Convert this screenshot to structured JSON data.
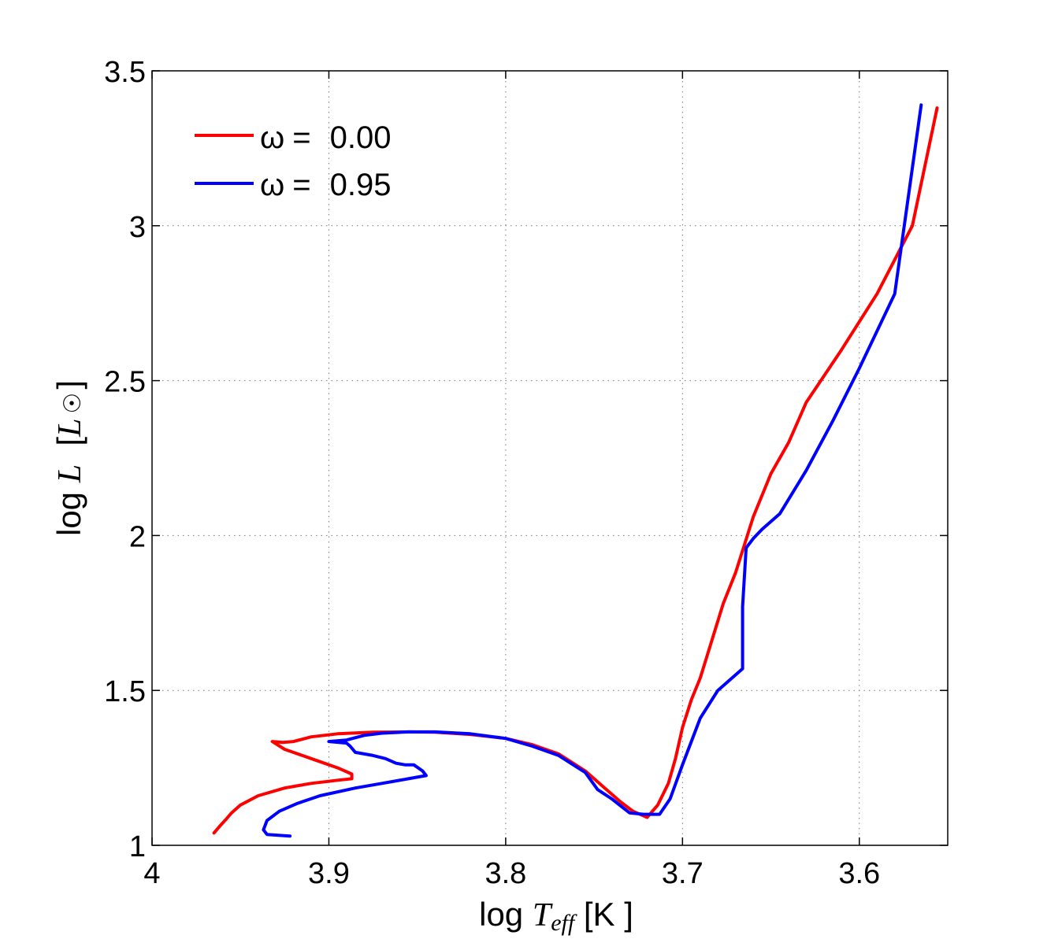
{
  "chart_data": {
    "type": "line",
    "title": "",
    "xlabel": {
      "prefix": "log ",
      "symbol": "T",
      "subscript": "eff",
      "unit": " [K ]"
    },
    "ylabel": {
      "prefix": "log ",
      "symbol": "L",
      "unit_open": "  [",
      "unit_symbol": "L",
      "unit_sun": "☉",
      "unit_close": "]"
    },
    "xlim": [
      4.0,
      3.55
    ],
    "x_reversed": true,
    "ylim": [
      1.0,
      3.5
    ],
    "xticks": [
      4.0,
      3.9,
      3.8,
      3.7,
      3.6
    ],
    "xtick_labels": [
      "4",
      "3.9",
      "3.8",
      "3.7",
      "3.6"
    ],
    "yticks": [
      1.0,
      1.5,
      2.0,
      2.5,
      3.0,
      3.5
    ],
    "ytick_labels": [
      "1",
      "1.5",
      "2",
      "2.5",
      "3",
      "3.5"
    ],
    "grid": true,
    "legend_position": "top-left",
    "series": [
      {
        "name": "ω = 0.00",
        "legend_symbol": "ω",
        "legend_value": "0.00",
        "color": "#ff0000",
        "x": [
          3.965,
          3.962,
          3.958,
          3.955,
          3.95,
          3.94,
          3.925,
          3.91,
          3.895,
          3.887,
          3.887,
          3.895,
          3.91,
          3.925,
          3.932,
          3.926,
          3.92,
          3.91,
          3.895,
          3.875,
          3.855,
          3.84,
          3.82,
          3.8,
          3.785,
          3.77,
          3.755,
          3.745,
          3.735,
          3.728,
          3.72,
          3.714,
          3.708,
          3.704,
          3.7,
          3.695,
          3.69,
          3.684,
          3.677,
          3.67,
          3.665,
          3.66,
          3.65,
          3.64,
          3.63,
          3.61,
          3.59,
          3.57,
          3.556
        ],
        "y": [
          1.04,
          1.06,
          1.085,
          1.105,
          1.13,
          1.16,
          1.185,
          1.2,
          1.21,
          1.215,
          1.23,
          1.25,
          1.28,
          1.31,
          1.335,
          1.332,
          1.335,
          1.35,
          1.36,
          1.365,
          1.366,
          1.365,
          1.358,
          1.345,
          1.325,
          1.295,
          1.24,
          1.19,
          1.14,
          1.11,
          1.09,
          1.13,
          1.2,
          1.28,
          1.38,
          1.47,
          1.54,
          1.65,
          1.78,
          1.88,
          1.97,
          2.06,
          2.2,
          2.3,
          2.43,
          2.6,
          2.78,
          3.0,
          3.38
        ]
      },
      {
        "name": "ω = 0.95",
        "legend_symbol": "ω",
        "legend_value": "0.95",
        "color": "#0000ff",
        "x": [
          3.922,
          3.935,
          3.937,
          3.935,
          3.928,
          3.918,
          3.905,
          3.885,
          3.87,
          3.855,
          3.845,
          3.847,
          3.852,
          3.857,
          3.862,
          3.868,
          3.875,
          3.885,
          3.888,
          3.89,
          3.9,
          3.89,
          3.88,
          3.87,
          3.855,
          3.84,
          3.82,
          3.8,
          3.785,
          3.77,
          3.755,
          3.748,
          3.74,
          3.73,
          3.722,
          3.713,
          3.707,
          3.7,
          3.69,
          3.68,
          3.666,
          3.666,
          3.664,
          3.66,
          3.655,
          3.645,
          3.63,
          3.615,
          3.6,
          3.58,
          3.565
        ],
        "y": [
          1.03,
          1.035,
          1.05,
          1.08,
          1.11,
          1.135,
          1.16,
          1.185,
          1.2,
          1.215,
          1.225,
          1.24,
          1.26,
          1.26,
          1.265,
          1.28,
          1.29,
          1.3,
          1.32,
          1.33,
          1.335,
          1.34,
          1.355,
          1.362,
          1.366,
          1.366,
          1.36,
          1.345,
          1.32,
          1.29,
          1.235,
          1.18,
          1.15,
          1.105,
          1.1,
          1.1,
          1.15,
          1.26,
          1.41,
          1.5,
          1.57,
          1.77,
          1.96,
          1.99,
          2.02,
          2.07,
          2.21,
          2.37,
          2.54,
          2.78,
          3.39
        ]
      }
    ]
  }
}
